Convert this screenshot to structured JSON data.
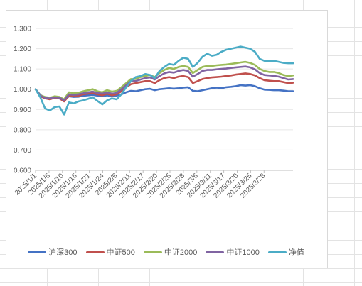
{
  "chart_data": {
    "type": "line",
    "ylim": [
      0.6,
      1.3
    ],
    "yticks": [
      "0.600",
      "0.700",
      "0.800",
      "0.900",
      "1.000",
      "1.100",
      "1.200",
      "1.300"
    ],
    "x_ticks_shown": [
      "2025/1/1",
      "2025/1/6",
      "2025/1/10",
      "2025/1/16",
      "2025/1/21",
      "2025/1/24",
      "2025/2/6",
      "2025/2/11",
      "2025/2/17",
      "2025/2/20",
      "2025/2/25",
      "2025/2/28",
      "2025/3/6",
      "2025/3/11",
      "2025/3/17",
      "2025/3/20",
      "2025/3/25",
      "2025/3/28"
    ],
    "grid": "horizontal",
    "legend_position": "bottom",
    "series": [
      {
        "name": "沪深300",
        "color": "#4472c4",
        "values": [
          1.0,
          0.972,
          0.958,
          0.955,
          0.96,
          0.958,
          0.945,
          0.965,
          0.962,
          0.963,
          0.968,
          0.97,
          0.972,
          0.968,
          0.965,
          0.97,
          0.965,
          0.968,
          0.975,
          0.985,
          0.992,
          0.99,
          0.995,
          1.0,
          1.002,
          0.995,
          1.0,
          1.002,
          1.005,
          1.003,
          1.005,
          1.008,
          1.01,
          0.992,
          0.99,
          0.995,
          1.0,
          1.005,
          1.008,
          1.005,
          1.01,
          1.012,
          1.015,
          1.02,
          1.018,
          1.02,
          1.015,
          1.005,
          0.998,
          0.997,
          0.995,
          0.995,
          0.993,
          0.99,
          0.99
        ]
      },
      {
        "name": "中证500",
        "color": "#c0504d",
        "values": [
          1.0,
          0.965,
          0.955,
          0.95,
          0.958,
          0.955,
          0.94,
          0.968,
          0.965,
          0.968,
          0.975,
          0.978,
          0.98,
          0.975,
          0.97,
          0.978,
          0.97,
          0.975,
          0.99,
          1.01,
          1.025,
          1.03,
          1.035,
          1.04,
          1.04,
          1.03,
          1.045,
          1.055,
          1.06,
          1.055,
          1.062,
          1.065,
          1.06,
          1.03,
          1.04,
          1.05,
          1.055,
          1.058,
          1.06,
          1.062,
          1.065,
          1.068,
          1.072,
          1.075,
          1.078,
          1.075,
          1.068,
          1.055,
          1.045,
          1.042,
          1.04,
          1.04,
          1.035,
          1.03,
          1.032
        ]
      },
      {
        "name": "中证2000",
        "color": "#9bbb59",
        "values": [
          1.0,
          0.97,
          0.962,
          0.958,
          0.965,
          0.962,
          0.95,
          0.985,
          0.98,
          0.983,
          0.99,
          0.995,
          1.0,
          0.99,
          0.985,
          0.995,
          0.988,
          0.992,
          1.01,
          1.03,
          1.05,
          1.05,
          1.06,
          1.065,
          1.07,
          1.06,
          1.08,
          1.095,
          1.105,
          1.1,
          1.11,
          1.115,
          1.11,
          1.08,
          1.095,
          1.11,
          1.115,
          1.115,
          1.118,
          1.12,
          1.122,
          1.125,
          1.128,
          1.132,
          1.135,
          1.13,
          1.12,
          1.1,
          1.09,
          1.085,
          1.085,
          1.08,
          1.07,
          1.065,
          1.068
        ]
      },
      {
        "name": "中证1000",
        "color": "#8064a2",
        "values": [
          1.0,
          0.968,
          0.958,
          0.954,
          0.96,
          0.958,
          0.945,
          0.975,
          0.972,
          0.975,
          0.98,
          0.985,
          0.988,
          0.982,
          0.978,
          0.985,
          0.978,
          0.982,
          1.0,
          1.02,
          1.04,
          1.04,
          1.048,
          1.055,
          1.058,
          1.048,
          1.065,
          1.078,
          1.085,
          1.082,
          1.09,
          1.095,
          1.09,
          1.062,
          1.075,
          1.09,
          1.095,
          1.095,
          1.098,
          1.1,
          1.102,
          1.105,
          1.108,
          1.11,
          1.112,
          1.108,
          1.098,
          1.08,
          1.07,
          1.068,
          1.066,
          1.062,
          1.055,
          1.048,
          1.05
        ]
      },
      {
        "name": "净值",
        "color": "#4bacc6",
        "values": [
          1.0,
          0.96,
          0.905,
          0.895,
          0.912,
          0.915,
          0.875,
          0.935,
          0.93,
          0.94,
          0.945,
          0.952,
          0.96,
          0.942,
          0.925,
          0.945,
          0.955,
          0.95,
          0.975,
          1.01,
          1.04,
          1.06,
          1.065,
          1.075,
          1.07,
          1.055,
          1.09,
          1.11,
          1.125,
          1.12,
          1.14,
          1.155,
          1.15,
          1.11,
          1.13,
          1.16,
          1.175,
          1.165,
          1.17,
          1.185,
          1.195,
          1.2,
          1.205,
          1.21,
          1.205,
          1.2,
          1.185,
          1.15,
          1.14,
          1.138,
          1.14,
          1.135,
          1.13,
          1.128,
          1.128
        ]
      }
    ]
  }
}
